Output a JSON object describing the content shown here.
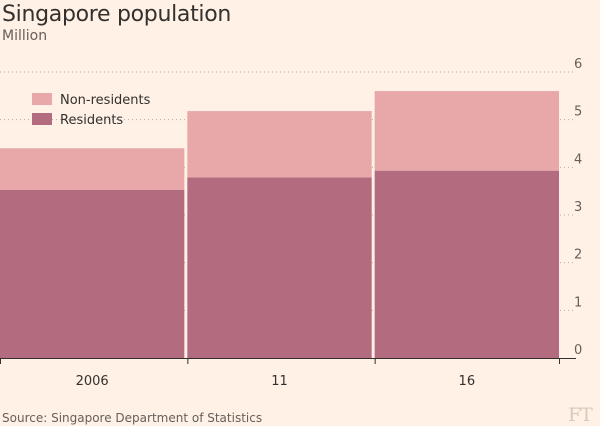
{
  "chart_data": {
    "type": "bar",
    "stacked": true,
    "title": "Singapore population",
    "subtitle": "Million",
    "categories": [
      "2006",
      "11",
      "16"
    ],
    "series": [
      {
        "name": "Residents",
        "color": "#b36b80",
        "values": [
          3.53,
          3.79,
          3.93
        ]
      },
      {
        "name": "Non-residents",
        "color": "#e8a7a8",
        "values": [
          0.87,
          1.39,
          1.67
        ]
      }
    ],
    "ylim": [
      0,
      6
    ],
    "yticks": [
      "0",
      "1",
      "2",
      "3",
      "4",
      "5",
      "6"
    ],
    "grid": true,
    "legend_position": "top-left",
    "y_axis_side": "right",
    "source": "Source: Singapore Department of Statistics"
  },
  "brand": {
    "logo_text": "FT"
  }
}
